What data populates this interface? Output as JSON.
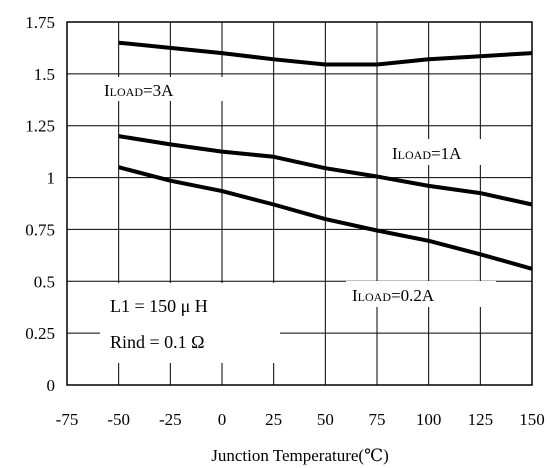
{
  "chart_data": {
    "type": "line",
    "xlabel": "Junction Temperature(℃)",
    "ylabel": "",
    "xlim": [
      -75,
      150
    ],
    "ylim": [
      0,
      1.75
    ],
    "xticks": [
      -75,
      -50,
      -25,
      0,
      25,
      50,
      75,
      100,
      125,
      150
    ],
    "yticks": [
      0,
      0.25,
      0.5,
      0.75,
      1,
      1.25,
      1.5,
      1.75
    ],
    "xtick_labels": [
      "-75",
      "-50",
      "-25",
      "0",
      "25",
      "50",
      "75",
      "100",
      "125",
      "150"
    ],
    "ytick_labels": [
      "0",
      "0.25",
      "0.5",
      "0.75",
      "1",
      "1.25",
      "1.5",
      "1.75"
    ],
    "grid": true,
    "series": [
      {
        "label_prefix": "I",
        "label_sub": "LOAD",
        "label_value": "=3A",
        "x": [
          -50,
          -25,
          0,
          25,
          50,
          75,
          100,
          125,
          150
        ],
        "y": [
          1.65,
          1.625,
          1.6,
          1.57,
          1.545,
          1.545,
          1.57,
          1.585,
          1.6
        ]
      },
      {
        "label_prefix": "I",
        "label_sub": "LOAD",
        "label_value": "=1A",
        "x": [
          -50,
          -25,
          0,
          25,
          50,
          75,
          100,
          125,
          150
        ],
        "y": [
          1.2,
          1.16,
          1.125,
          1.1,
          1.045,
          1.005,
          0.96,
          0.925,
          0.87
        ]
      },
      {
        "label_prefix": "I",
        "label_sub": "LOAD",
        "label_value": "=0.2A",
        "x": [
          -50,
          -25,
          0,
          25,
          50,
          75,
          100,
          125,
          150
        ],
        "y": [
          1.05,
          0.985,
          0.935,
          0.87,
          0.8,
          0.745,
          0.695,
          0.63,
          0.56
        ]
      }
    ],
    "annotations": [
      "L1 = 150 μ H",
      "Rind = 0.1 Ω"
    ]
  }
}
